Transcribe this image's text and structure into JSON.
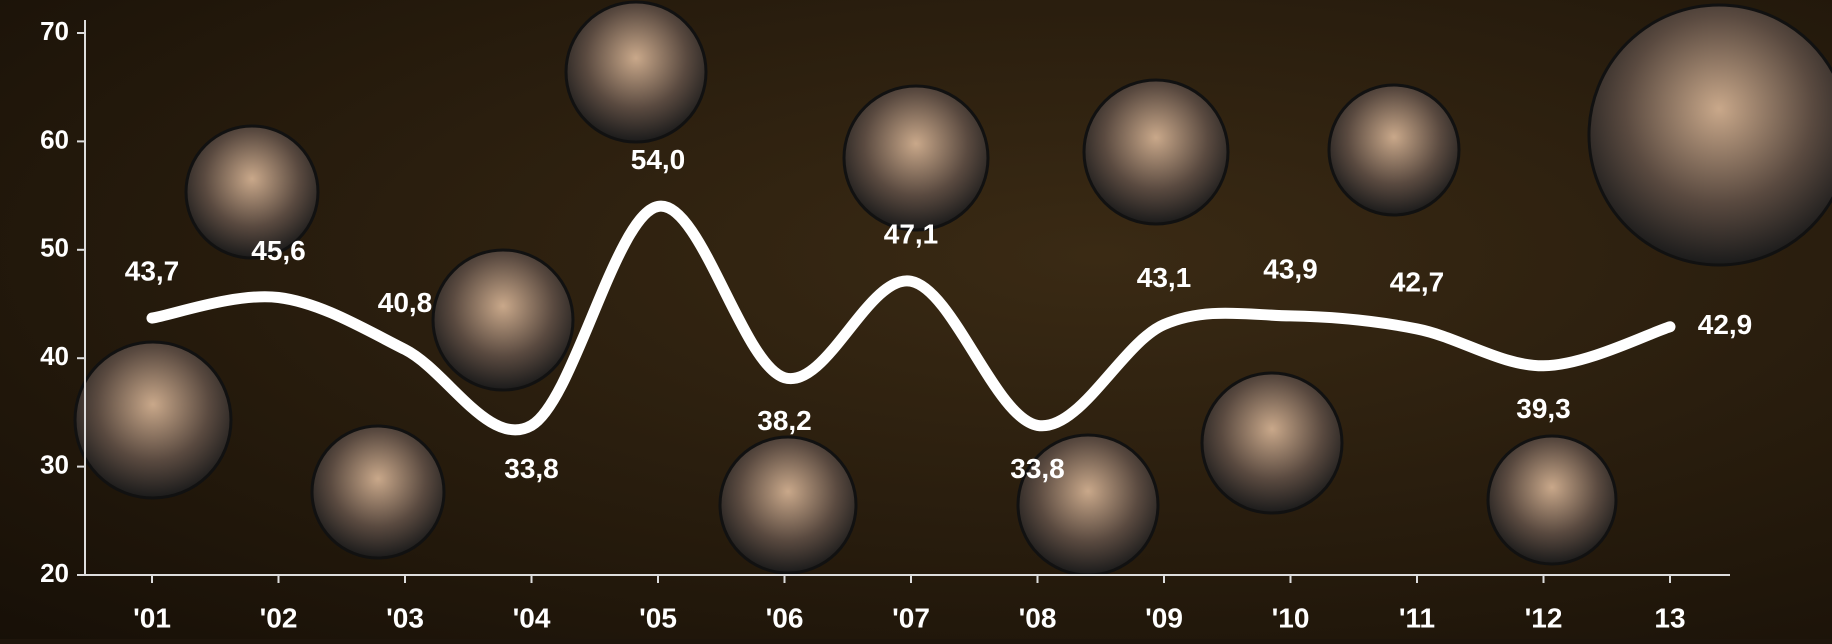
{
  "chart_data": {
    "type": "line",
    "categories": [
      "'01",
      "'02",
      "'03",
      "'04",
      "'05",
      "'06",
      "'07",
      "'08",
      "'09",
      "'10",
      "'11",
      "'12",
      "13"
    ],
    "values": [
      43.7,
      45.6,
      40.8,
      33.8,
      54.0,
      38.2,
      47.1,
      33.8,
      43.1,
      43.9,
      42.7,
      39.3,
      42.9
    ],
    "value_labels": [
      "43,7",
      "45,6",
      "40,8",
      "33,8",
      "54,0",
      "38,2",
      "47,1",
      "33,8",
      "43,1",
      "43,9",
      "42,7",
      "39,3",
      "42,9"
    ],
    "color": "#ffffff",
    "ylim": [
      20,
      70
    ],
    "yticks": [
      20,
      30,
      40,
      50,
      60,
      70
    ],
    "grid": false
  }
}
